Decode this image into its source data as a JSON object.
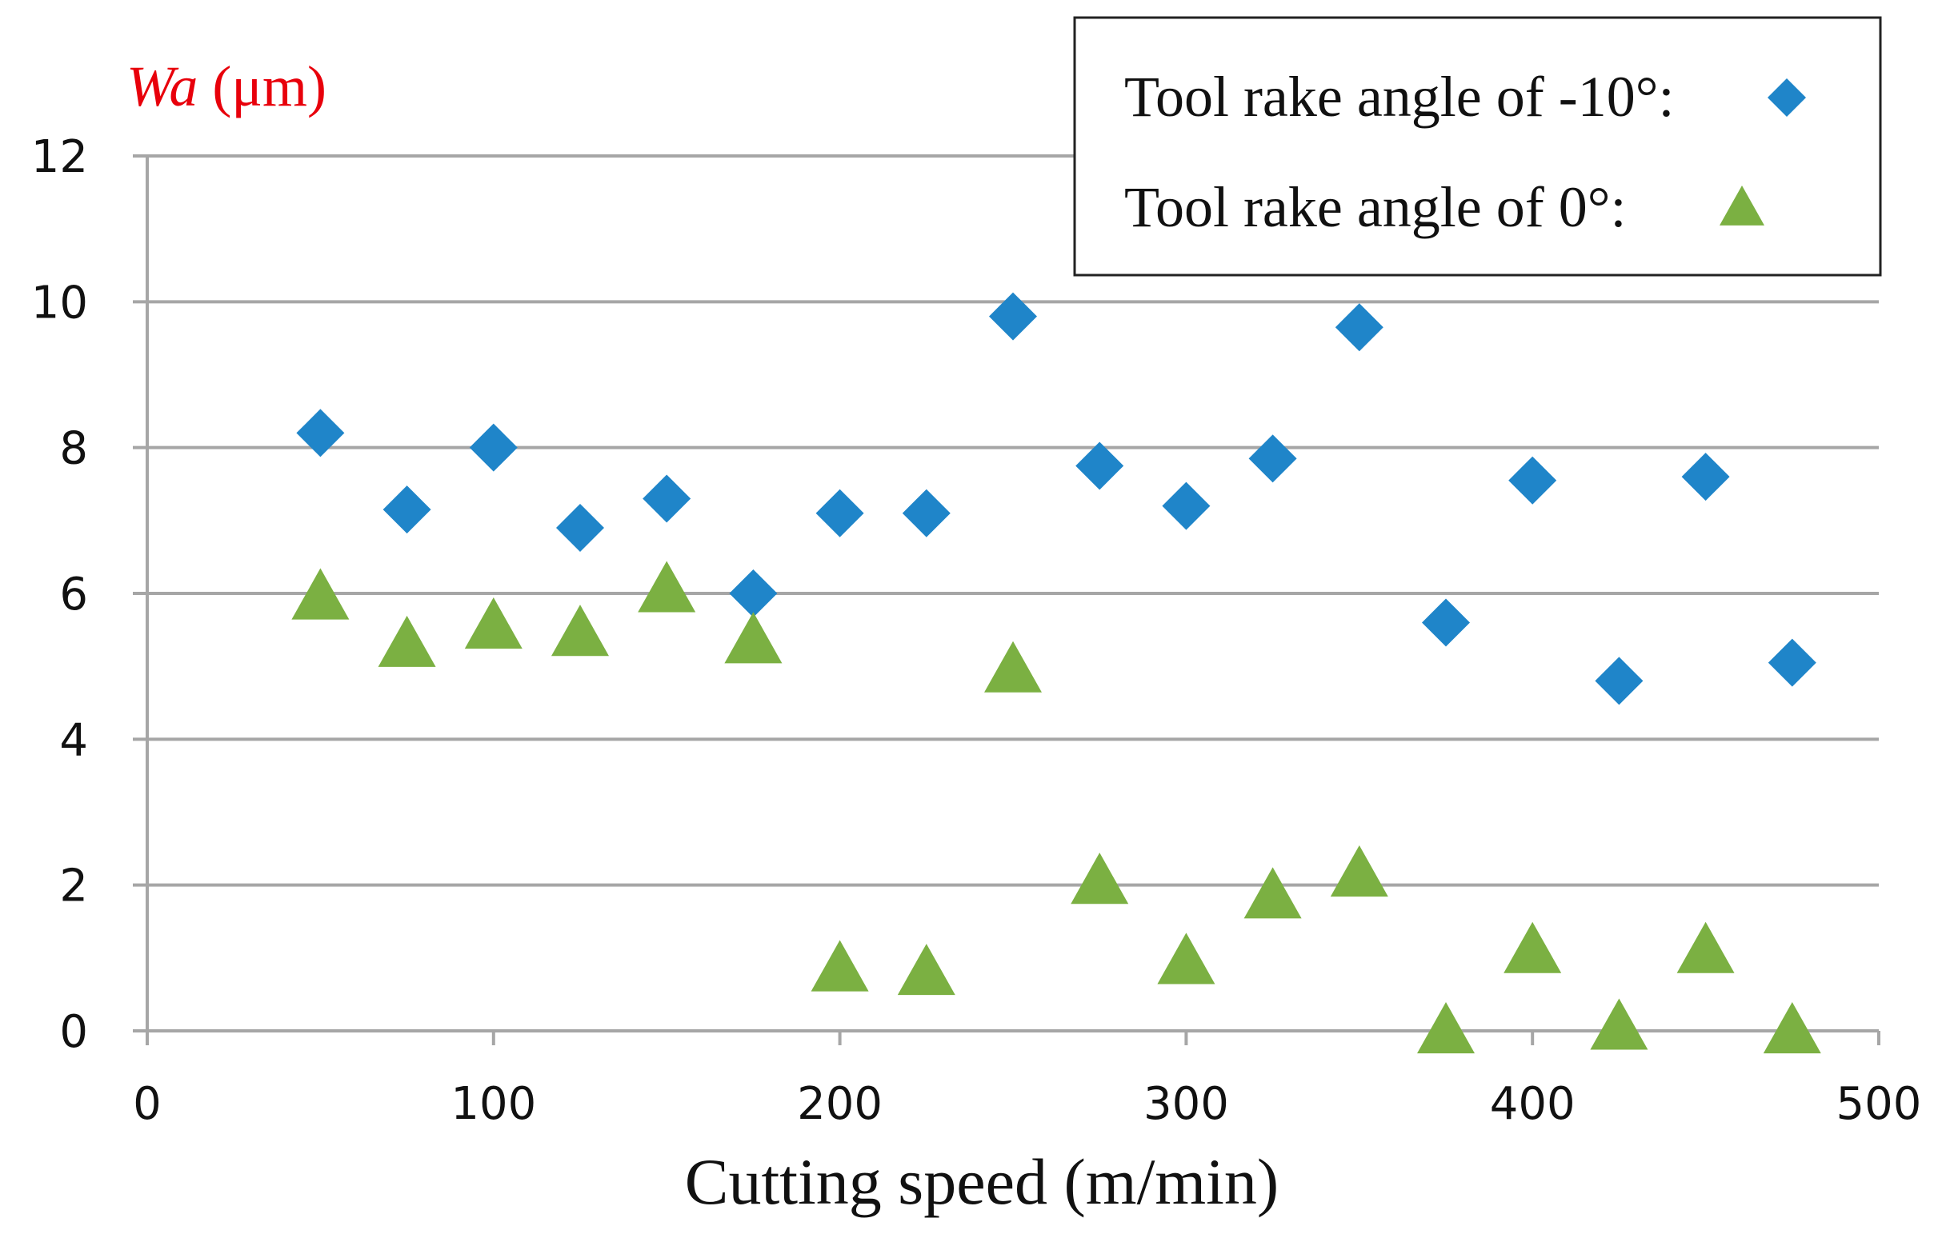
{
  "chart_data": {
    "type": "scatter",
    "title": "",
    "xlabel": "Cutting speed (m/min)",
    "ylabel": {
      "symbol": "Wa",
      "unit": " (μm)"
    },
    "xlim": [
      0,
      500
    ],
    "ylim": [
      0,
      12
    ],
    "xticks": [
      0,
      100,
      200,
      300,
      400,
      500
    ],
    "yticks": [
      0,
      2,
      4,
      6,
      8,
      10,
      12
    ],
    "grid": "horizontal",
    "legend_position": "top-right",
    "colors": {
      "axis": "#a6a6a6",
      "grid": "#a6a6a6",
      "ylabel_color": "#e8000b",
      "diamond": "#1f85c9",
      "triangle": "#7bb042"
    },
    "series": [
      {
        "name": "Tool rake angle of -10°:",
        "marker": "diamond",
        "color": "#1f85c9",
        "x": [
          50,
          75,
          100,
          125,
          150,
          175,
          200,
          225,
          250,
          275,
          300,
          325,
          350,
          375,
          400,
          425,
          450,
          475
        ],
        "y": [
          8.2,
          7.15,
          8.0,
          6.9,
          7.3,
          6.0,
          7.1,
          7.1,
          9.8,
          7.75,
          7.2,
          7.85,
          9.65,
          5.6,
          7.55,
          4.8,
          7.6,
          5.05
        ]
      },
      {
        "name": "Tool rake angle of 0°:",
        "marker": "triangle",
        "color": "#7bb042",
        "x": [
          50,
          75,
          100,
          125,
          150,
          175,
          250,
          200,
          225,
          275,
          300,
          325,
          350,
          375,
          400,
          425,
          450,
          475
        ],
        "y": [
          5.95,
          5.3,
          5.55,
          5.45,
          6.05,
          5.35,
          4.95,
          0.85,
          0.8,
          2.05,
          0.95,
          1.85,
          2.15,
          0.0,
          1.1,
          0.05,
          1.1,
          0.0
        ]
      }
    ]
  }
}
